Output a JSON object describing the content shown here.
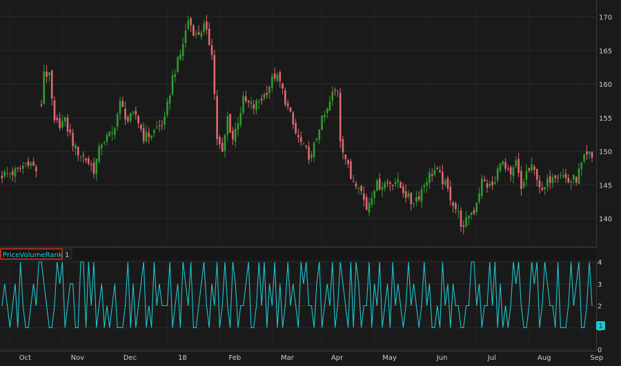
{
  "chart_data": [
    {
      "type": "candlestick",
      "title": "",
      "xlabel": "",
      "ylabel": "",
      "ylim": [
        136,
        172
      ],
      "yticks": [
        140,
        145,
        150,
        155,
        160,
        165,
        170
      ],
      "grid": true,
      "colors": {
        "up": "#2e9e2e",
        "down": "#e06a72"
      },
      "month_labels": [
        "Oct",
        "Nov",
        "Dec",
        "18",
        "Feb",
        "Mar",
        "Apr",
        "May",
        "Jun",
        "Jul",
        "Aug",
        "Sep"
      ],
      "month_positions": [
        3,
        23,
        43,
        63,
        83,
        103,
        122,
        142,
        162,
        181,
        201,
        221
      ],
      "close_path": [
        [
          0,
          146.5
        ],
        [
          6,
          147.0
        ],
        [
          10,
          148.6
        ],
        [
          14,
          146.7
        ],
        [
          15,
          157
        ],
        [
          16,
          162
        ],
        [
          18,
          161
        ],
        [
          20,
          154
        ],
        [
          24,
          154.4
        ],
        [
          28,
          150.3
        ],
        [
          32,
          148.8
        ],
        [
          35,
          147.3
        ],
        [
          38,
          151.4
        ],
        [
          42,
          152.6
        ],
        [
          45,
          157.0
        ],
        [
          48,
          154.6
        ],
        [
          51,
          155.5
        ],
        [
          54,
          152.2
        ],
        [
          57,
          152.6
        ],
        [
          62,
          154.5
        ],
        [
          65,
          161
        ],
        [
          68,
          164.4
        ],
        [
          71,
          169.6
        ],
        [
          74,
          167.2
        ],
        [
          77,
          168.5
        ],
        [
          80,
          165
        ],
        [
          82,
          152
        ],
        [
          84,
          149.5
        ],
        [
          86,
          155
        ],
        [
          88,
          151.8
        ],
        [
          92,
          157.5
        ],
        [
          96,
          156.6
        ],
        [
          100,
          158.4
        ],
        [
          104,
          161.3
        ],
        [
          106,
          160.2
        ],
        [
          109,
          156.4
        ],
        [
          112,
          152.6
        ],
        [
          115,
          150.5
        ],
        [
          118,
          149.0
        ],
        [
          121,
          153.8
        ],
        [
          124,
          156.0
        ],
        [
          126,
          158.5
        ],
        [
          128,
          159.3
        ],
        [
          129,
          152
        ],
        [
          131,
          149
        ],
        [
          133,
          146
        ],
        [
          136,
          145.3
        ],
        [
          139,
          141.5
        ],
        [
          142,
          144.8
        ],
        [
          146,
          145.2
        ],
        [
          150,
          145.6
        ],
        [
          153,
          144.2
        ],
        [
          156,
          142.4
        ],
        [
          159,
          143.5
        ],
        [
          162,
          146.0
        ],
        [
          165,
          147.2
        ],
        [
          168,
          145.7
        ],
        [
          171,
          143.3
        ],
        [
          174,
          140.6
        ],
        [
          176,
          138.2
        ],
        [
          178,
          140.7
        ],
        [
          180,
          141.2
        ],
        [
          183,
          145.6
        ],
        [
          186,
          144.7
        ],
        [
          188,
          145.2
        ],
        [
          190,
          149.0
        ],
        [
          192,
          147.2
        ],
        [
          194,
          146.0
        ],
        [
          196,
          148.3
        ],
        [
          198,
          144.3
        ],
        [
          200,
          146.9
        ],
        [
          202,
          147.4
        ],
        [
          204,
          146.4
        ],
        [
          206,
          143.6
        ],
        [
          208,
          145.3
        ],
        [
          210,
          146.7
        ],
        [
          213,
          146.8
        ],
        [
          216,
          145.5
        ],
        [
          219,
          146.0
        ],
        [
          222,
          148.8
        ],
        [
          224,
          149.4
        ],
        [
          226,
          148.4
        ],
        [
          228,
          150.5
        ],
        [
          230,
          150.6
        ],
        [
          232,
          148.9
        ],
        [
          234,
          152.4
        ]
      ]
    },
    {
      "type": "line",
      "title": "PriceVolumeRank",
      "study_setting": "1",
      "ylim": [
        0,
        4
      ],
      "yticks": [
        0,
        1,
        2,
        3,
        4
      ],
      "current_value": "1",
      "colors": {
        "line": "#1ec8d2",
        "badge_bg": "#1ec8d2",
        "badge_text": "#0a3a3e",
        "title_border": "#e0302a"
      },
      "values": [
        2,
        3,
        2,
        1,
        2,
        3,
        1,
        4,
        2,
        1,
        1,
        2,
        3,
        2,
        4,
        4,
        3,
        2,
        1,
        1,
        2,
        4,
        3,
        4,
        1,
        2,
        3,
        3,
        1,
        1,
        4,
        4,
        1,
        4,
        2,
        4,
        1,
        2,
        3,
        1,
        2,
        1,
        2,
        3,
        1,
        1,
        1,
        2,
        4,
        1,
        3,
        1,
        2,
        3,
        4,
        1,
        2,
        1,
        4,
        2,
        3,
        2,
        2,
        2,
        4,
        1,
        2,
        3,
        1,
        4,
        3,
        2,
        4,
        1,
        1,
        2,
        3,
        4,
        2,
        1,
        3,
        2,
        4,
        1,
        2,
        4,
        2,
        1,
        4,
        3,
        1,
        2,
        2,
        3,
        4,
        1,
        1,
        2,
        4,
        2,
        4,
        1,
        3,
        2,
        4,
        1,
        3,
        1,
        2,
        4,
        2,
        3,
        2,
        1,
        4,
        3,
        4,
        2,
        2,
        1,
        3,
        4,
        1,
        2,
        3,
        2,
        4,
        1,
        2,
        4,
        3,
        2,
        1,
        4,
        1,
        4,
        3,
        1,
        2,
        2,
        4,
        1,
        3,
        2,
        4,
        1,
        2,
        3,
        1,
        4,
        2,
        3,
        2,
        1,
        2,
        4,
        2,
        3,
        2,
        1,
        2,
        4,
        2,
        3,
        1,
        1,
        2,
        1,
        4,
        2,
        3,
        1,
        3,
        2,
        2,
        1,
        1,
        2,
        2,
        4,
        4,
        2,
        3,
        1,
        2,
        2,
        4,
        2,
        4,
        1,
        3,
        1,
        2,
        1,
        2,
        4,
        3,
        4,
        2,
        1,
        1,
        2,
        4,
        3,
        4,
        1,
        2,
        4,
        3,
        2,
        2,
        1,
        4,
        1,
        1,
        1,
        2,
        4,
        2,
        3,
        4,
        1,
        1,
        2,
        4,
        2
      ]
    }
  ],
  "x_axis": {
    "labels": [
      "Oct",
      "Nov",
      "Dec",
      "18",
      "Feb",
      "Mar",
      "Apr",
      "May",
      "Jun",
      "Jul",
      "Aug",
      "Sep"
    ]
  }
}
